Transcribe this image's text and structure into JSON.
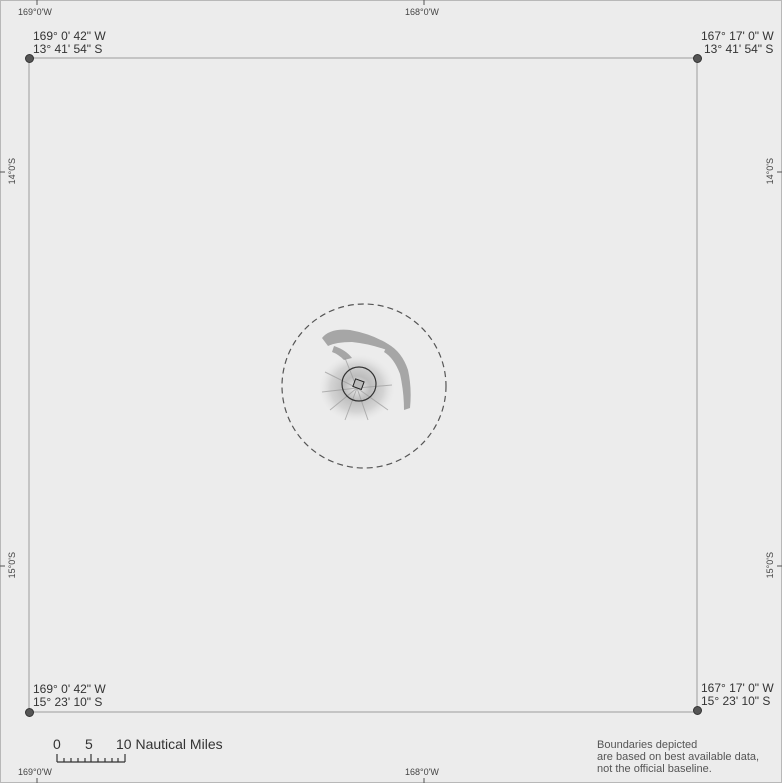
{
  "top_ticks": {
    "left": "169°0'W",
    "middle": "168°0'W"
  },
  "bottom_ticks": {
    "left": "169°0'W",
    "middle": "168°0'W"
  },
  "left_ticks": {
    "upper": "14°0'S",
    "lower": "15°0'S"
  },
  "right_ticks": {
    "upper": "14°0'S",
    "lower": "15°0'S"
  },
  "corners": {
    "top_left": {
      "lon": "169° 0' 42\" W",
      "lat": "13° 41' 54\" S"
    },
    "top_right": {
      "lon": "167° 17' 0\" W",
      "lat": "13° 41' 54\" S"
    },
    "bottom_left": {
      "lon": "169° 0' 42\" W",
      "lat": "15° 23' 10\" S"
    },
    "bottom_right": {
      "lon": "167° 17' 0\" W",
      "lat": "15° 23' 10\" S"
    }
  },
  "scale": {
    "labels": [
      "0",
      "5",
      "10 Nautical Miles"
    ]
  },
  "note": {
    "line1": "Boundaries depicted",
    "line2": "are based on best available data,",
    "line3": "not the official baseline."
  },
  "colors": {
    "background": "#ececec",
    "boundary_box": "#c4c4c4",
    "dashed_circle": "#555555",
    "bathymetry": "#8a8a8a"
  }
}
